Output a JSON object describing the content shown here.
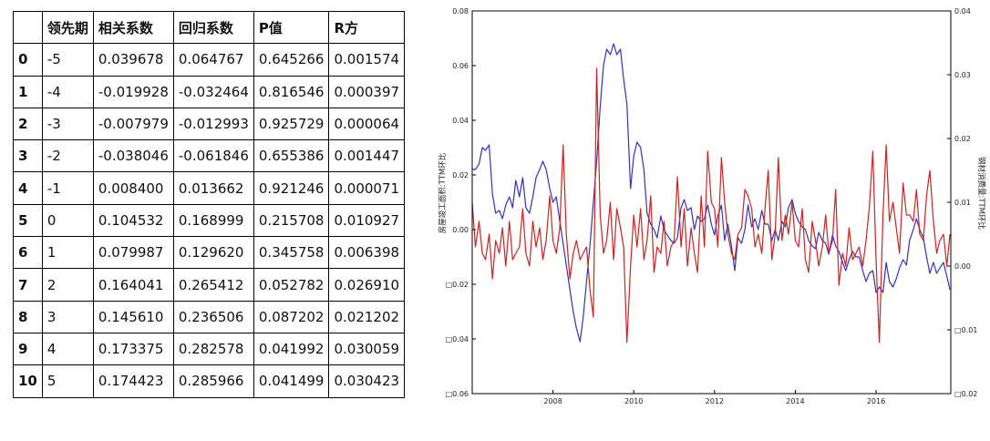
{
  "table": {
    "headers": [
      "",
      "领先期",
      "相关系数",
      "回归系数",
      "P值",
      "R方"
    ],
    "rows": [
      [
        "0",
        "-5",
        "0.039678",
        "0.064767",
        "0.645266",
        "0.001574"
      ],
      [
        "1",
        "-4",
        "-0.019928",
        "-0.032464",
        "0.816546",
        "0.000397"
      ],
      [
        "2",
        "-3",
        "-0.007979",
        "-0.012993",
        "0.925729",
        "0.000064"
      ],
      [
        "3",
        "-2",
        "-0.038046",
        "-0.061846",
        "0.655386",
        "0.001447"
      ],
      [
        "4",
        "-1",
        "0.008400",
        "0.013662",
        "0.921246",
        "0.000071"
      ],
      [
        "5",
        "0",
        "0.104532",
        "0.168999",
        "0.215708",
        "0.010927"
      ],
      [
        "6",
        "1",
        "0.079987",
        "0.129620",
        "0.345758",
        "0.006398"
      ],
      [
        "7",
        "2",
        "0.164041",
        "0.265412",
        "0.052782",
        "0.026910"
      ],
      [
        "8",
        "3",
        "0.145610",
        "0.236506",
        "0.087202",
        "0.021202"
      ],
      [
        "9",
        "4",
        "0.173375",
        "0.282578",
        "0.041992",
        "0.030059"
      ],
      [
        "10",
        "5",
        "0.174423",
        "0.285966",
        "0.041499",
        "0.030423"
      ]
    ]
  },
  "chart_data": {
    "type": "line",
    "title": "",
    "grid": false,
    "legend": "none",
    "x_range": [
      2006.0,
      2017.85
    ],
    "x_ticks": [
      2008,
      2010,
      2012,
      2014,
      2016
    ],
    "y_left": {
      "label": "房屋竣工面积:TTM环比",
      "ylim": [
        -0.06,
        0.08
      ],
      "ticks": [
        -0.06,
        -0.04,
        -0.02,
        0.0,
        0.02,
        0.04,
        0.06,
        0.08
      ],
      "tick_labels": [
        "□0.06",
        "□0.04",
        "□0.02",
        "0.00",
        "0.02",
        "0.04",
        "0.06",
        "0.08"
      ]
    },
    "y_right": {
      "label": "钢材消费量:TTM环比",
      "ylim": [
        -0.02,
        0.04
      ],
      "ticks": [
        -0.02,
        -0.01,
        0.0,
        0.01,
        0.02,
        0.03,
        0.04
      ],
      "tick_labels": [
        "□0.02",
        "□0.01",
        "0.00",
        "0.01",
        "0.02",
        "0.03",
        "0.04"
      ]
    },
    "series": [
      {
        "axis": "left",
        "color": "#3333bb",
        "x": [
          2006.0,
          2006.08,
          2006.17,
          2006.25,
          2006.33,
          2006.42,
          2006.5,
          2006.58,
          2006.67,
          2006.75,
          2006.83,
          2006.92,
          2007.0,
          2007.08,
          2007.17,
          2007.25,
          2007.33,
          2007.42,
          2007.5,
          2007.58,
          2007.67,
          2007.75,
          2007.83,
          2007.92,
          2008.0,
          2008.08,
          2008.17,
          2008.25,
          2008.33,
          2008.42,
          2008.5,
          2008.58,
          2008.67,
          2008.75,
          2008.83,
          2008.92,
          2009.0,
          2009.08,
          2009.17,
          2009.25,
          2009.33,
          2009.42,
          2009.5,
          2009.58,
          2009.67,
          2009.75,
          2009.83,
          2009.92,
          2010.0,
          2010.08,
          2010.17,
          2010.25,
          2010.33,
          2010.42,
          2010.5,
          2010.58,
          2010.67,
          2010.75,
          2010.83,
          2010.92,
          2011.0,
          2011.08,
          2011.17,
          2011.25,
          2011.33,
          2011.42,
          2011.5,
          2011.58,
          2011.67,
          2011.75,
          2011.83,
          2011.92,
          2012.0,
          2012.08,
          2012.17,
          2012.25,
          2012.33,
          2012.42,
          2012.5,
          2012.58,
          2012.67,
          2012.75,
          2012.83,
          2012.92,
          2013.0,
          2013.08,
          2013.17,
          2013.25,
          2013.33,
          2013.42,
          2013.5,
          2013.58,
          2013.67,
          2013.75,
          2013.83,
          2013.92,
          2014.0,
          2014.08,
          2014.17,
          2014.25,
          2014.33,
          2014.42,
          2014.5,
          2014.58,
          2014.67,
          2014.75,
          2014.83,
          2014.92,
          2015.0,
          2015.08,
          2015.17,
          2015.25,
          2015.33,
          2015.42,
          2015.5,
          2015.58,
          2015.67,
          2015.75,
          2015.83,
          2015.92,
          2016.0,
          2016.08,
          2016.17,
          2016.25,
          2016.33,
          2016.42,
          2016.5,
          2016.58,
          2016.67,
          2016.75,
          2016.83,
          2016.92,
          2017.0,
          2017.08,
          2017.17,
          2017.25,
          2017.33,
          2017.42,
          2017.5,
          2017.58,
          2017.67,
          2017.75,
          2017.83
        ],
        "values": [
          0.022,
          0.022,
          0.024,
          0.03,
          0.029,
          0.031,
          0.013,
          0.006,
          0.007,
          0.004,
          0.009,
          0.012,
          0.008,
          0.018,
          0.012,
          0.019,
          0.008,
          0.006,
          0.012,
          0.019,
          0.022,
          0.025,
          0.022,
          0.015,
          0.01,
          0.012,
          0.003,
          -0.005,
          -0.013,
          -0.022,
          -0.03,
          -0.036,
          -0.041,
          -0.032,
          -0.019,
          -0.005,
          0.01,
          0.025,
          0.045,
          0.06,
          0.066,
          0.064,
          0.068,
          0.064,
          0.066,
          0.055,
          0.046,
          0.015,
          0.027,
          0.032,
          0.03,
          0.022,
          0.006,
          0.002,
          0.0,
          -0.003,
          0.005,
          0.0,
          -0.002,
          -0.004,
          -0.005,
          -0.003,
          0.008,
          0.011,
          0.007,
          0.008,
          0.0,
          0.005,
          0.003,
          0.004,
          0.009,
          0.002,
          -0.002,
          0.005,
          0.009,
          -0.004,
          0.002,
          -0.006,
          -0.015,
          -0.003,
          -0.005,
          0.0,
          0.009,
          0.001,
          0.004,
          0.0,
          0.007,
          0.002,
          0.002,
          -0.004,
          0.0,
          -0.004,
          0.003,
          0.001,
          0.008,
          0.011,
          0.006,
          0.003,
          0.001,
          0.0,
          -0.004,
          -0.006,
          -0.007,
          -0.001,
          -0.004,
          -0.005,
          -0.009,
          -0.002,
          -0.006,
          -0.008,
          -0.012,
          -0.015,
          -0.011,
          -0.008,
          -0.01,
          -0.01,
          -0.015,
          -0.019,
          -0.016,
          -0.015,
          -0.023,
          -0.021,
          -0.023,
          -0.012,
          -0.019,
          -0.021,
          -0.018,
          -0.014,
          -0.011,
          -0.013,
          -0.004,
          0.0,
          0.004,
          0.0,
          -0.003,
          -0.01,
          -0.016,
          -0.012,
          -0.016,
          -0.014,
          -0.012,
          -0.017,
          -0.022
        ]
      },
      {
        "axis": "right",
        "color": "#cc2222",
        "x": [
          2006.0,
          2006.08,
          2006.17,
          2006.25,
          2006.33,
          2006.42,
          2006.5,
          2006.58,
          2006.67,
          2006.75,
          2006.83,
          2006.92,
          2007.0,
          2007.08,
          2007.17,
          2007.25,
          2007.33,
          2007.42,
          2007.5,
          2007.58,
          2007.67,
          2007.75,
          2007.83,
          2007.92,
          2008.0,
          2008.08,
          2008.17,
          2008.25,
          2008.33,
          2008.42,
          2008.5,
          2008.58,
          2008.67,
          2008.75,
          2008.83,
          2008.92,
          2009.0,
          2009.08,
          2009.17,
          2009.25,
          2009.33,
          2009.42,
          2009.5,
          2009.58,
          2009.67,
          2009.75,
          2009.83,
          2009.92,
          2010.0,
          2010.08,
          2010.17,
          2010.25,
          2010.33,
          2010.42,
          2010.5,
          2010.58,
          2010.67,
          2010.75,
          2010.83,
          2010.92,
          2011.0,
          2011.08,
          2011.17,
          2011.25,
          2011.33,
          2011.42,
          2011.5,
          2011.58,
          2011.67,
          2011.75,
          2011.83,
          2011.92,
          2012.0,
          2012.08,
          2012.17,
          2012.25,
          2012.33,
          2012.42,
          2012.5,
          2012.58,
          2012.67,
          2012.75,
          2012.83,
          2012.92,
          2013.0,
          2013.08,
          2013.17,
          2013.25,
          2013.33,
          2013.42,
          2013.5,
          2013.58,
          2013.67,
          2013.75,
          2013.83,
          2013.92,
          2014.0,
          2014.08,
          2014.17,
          2014.25,
          2014.33,
          2014.42,
          2014.5,
          2014.58,
          2014.67,
          2014.75,
          2014.83,
          2014.92,
          2015.0,
          2015.08,
          2015.17,
          2015.25,
          2015.33,
          2015.42,
          2015.5,
          2015.58,
          2015.67,
          2015.75,
          2015.83,
          2015.92,
          2016.0,
          2016.08,
          2016.17,
          2016.25,
          2016.33,
          2016.42,
          2016.5,
          2016.58,
          2016.67,
          2016.75,
          2016.83,
          2016.92,
          2017.0,
          2017.08,
          2017.17,
          2017.25,
          2017.33,
          2017.42,
          2017.5,
          2017.58,
          2017.67,
          2017.75,
          2017.83
        ],
        "values": [
          0.01,
          0.003,
          0.007,
          0.002,
          0.001,
          0.005,
          -0.002,
          0.004,
          0.002,
          0.006,
          0.0,
          0.007,
          0.001,
          0.002,
          0.003,
          0.009,
          0.002,
          0.0,
          0.007,
          0.003,
          0.006,
          0.001,
          0.004,
          0.011,
          0.004,
          0.002,
          0.006,
          0.019,
          0.005,
          -0.002,
          0.002,
          0.004,
          0.001,
          0.002,
          0.003,
          -0.004,
          -0.008,
          0.031,
          0.008,
          0.002,
          0.004,
          0.01,
          0.001,
          0.009,
          0.006,
          0.003,
          -0.012,
          0.0,
          0.008,
          0.003,
          0.009,
          0.001,
          0.004,
          0.011,
          -0.001,
          0.003,
          0.002,
          0.007,
          0.0,
          0.003,
          0.004,
          0.014,
          0.003,
          0.009,
          0.0,
          0.006,
          0.002,
          -0.001,
          0.011,
          0.003,
          0.018,
          0.01,
          0.009,
          0.003,
          0.017,
          0.01,
          0.005,
          0.002,
          0.001,
          0.005,
          0.006,
          0.012,
          0.011,
          0.009,
          0.003,
          0.005,
          0.002,
          0.009,
          0.015,
          0.001,
          0.005,
          0.017,
          0.004,
          0.008,
          0.005,
          0.01,
          0.004,
          0.003,
          0.009,
          0.001,
          -0.001,
          0.007,
          0.004,
          0.0,
          0.003,
          0.008,
          0.002,
          0.004,
          0.012,
          -0.003,
          0.002,
          0.0,
          0.006,
          0.001,
          0.002,
          0.003,
          0.0,
          0.004,
          0.009,
          0.018,
          0.001,
          -0.012,
          0.008,
          0.019,
          0.007,
          0.01,
          0.006,
          0.002,
          0.013,
          0.008,
          0.008,
          0.007,
          0.012,
          0.005,
          0.004,
          0.011,
          0.015,
          0.007,
          0.002,
          0.004,
          0.005,
          0.0,
          0.005
        ]
      }
    ]
  }
}
